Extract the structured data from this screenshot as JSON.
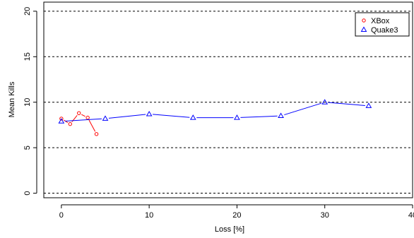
{
  "chart_data": {
    "type": "line",
    "title": "",
    "xlabel": "Loss [%]",
    "ylabel": "Mean Kills",
    "xlim": [
      -2,
      40
    ],
    "ylim": [
      -0.5,
      21
    ],
    "x_ticks": [
      0,
      10,
      20,
      30,
      40
    ],
    "y_ticks": [
      0,
      5,
      10,
      15,
      20
    ],
    "grid": "horizontal dashed at y ticks",
    "legend_position": "top-right",
    "series": [
      {
        "name": "XBox",
        "color": "#ff0000",
        "marker": "circle",
        "x": [
          0,
          1,
          2,
          3,
          4
        ],
        "y": [
          8.2,
          7.6,
          8.8,
          8.3,
          6.5
        ]
      },
      {
        "name": "Quake3",
        "color": "#0000ff",
        "marker": "triangle",
        "x": [
          0,
          5,
          10,
          15,
          20,
          25,
          30,
          35
        ],
        "y": [
          7.9,
          8.2,
          8.7,
          8.3,
          8.3,
          8.5,
          10.0,
          9.6
        ]
      }
    ]
  }
}
